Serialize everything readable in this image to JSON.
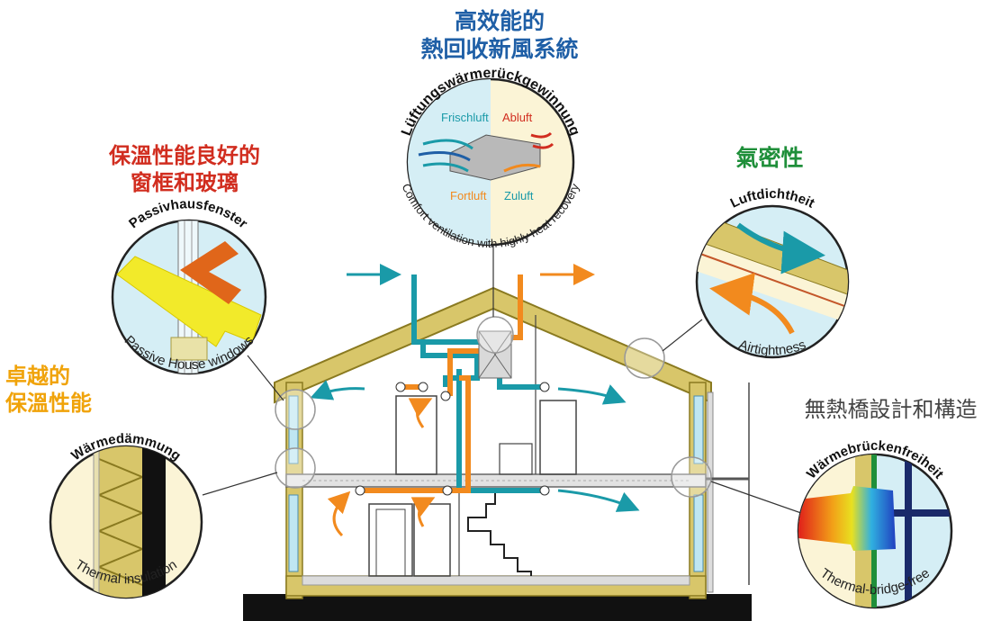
{
  "headings": {
    "ventilation": [
      "高效能的",
      "熱回收新風系統"
    ],
    "windows": [
      "保溫性能良好的",
      "窗框和玻璃"
    ],
    "airtight": "氣密性",
    "insulation": [
      "卓越的",
      "保溫性能"
    ],
    "thermal_bridge": "無熱橋設計和構造"
  },
  "ventilation_circle": {
    "arc_top": "Lüftungswärmerückgewinnung",
    "arc_bottom": "Comfort ventilation with highly heat recovery",
    "frischluft": "Frischluft",
    "abluft": "Abluft",
    "fortluft": "Fortluft",
    "zuluft": "Zuluft"
  },
  "windows_circle": {
    "arc_top": "Passivhausfenster",
    "arc_bottom": "Passive House windows"
  },
  "airtight_circle": {
    "arc_top": "Luftdichtheit",
    "arc_bottom": "Airtightness"
  },
  "insulation_circle": {
    "arc_top": "Wärmedämmung",
    "arc_bottom": "Thermal insulation"
  },
  "bridge_circle": {
    "arc_top": "Wärmebrückenfreiheit",
    "arc_bottom": "Thermal-bridge-free"
  },
  "colors": {
    "blue_title": "#1f5fa6",
    "red_title": "#d12d1f",
    "green_title": "#1f8f3a",
    "orange_title": "#f0a30a",
    "grey_title": "#444444",
    "teal_duct": "#1a9aa8",
    "orange_duct": "#f28a1e",
    "wall": "#d8c66a",
    "wall_edge": "#8a7a20"
  }
}
